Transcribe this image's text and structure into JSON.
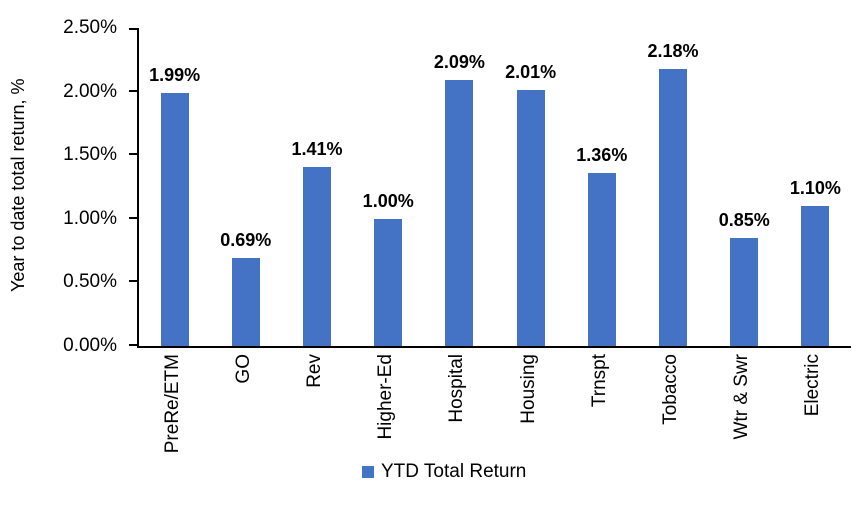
{
  "chart_data": {
    "type": "bar",
    "categories": [
      "PreRe/ETM",
      "GO",
      "Rev",
      "Higher-Ed",
      "Hospital",
      "Housing",
      "Trnspt",
      "Tobacco",
      "Wtr & Swr",
      "Electric"
    ],
    "values": [
      1.99,
      0.69,
      1.41,
      1.0,
      2.09,
      2.01,
      1.36,
      2.18,
      0.85,
      1.1
    ],
    "value_labels": [
      "1.99%",
      "0.69%",
      "1.41%",
      "1.00%",
      "2.09%",
      "2.01%",
      "1.36%",
      "2.18%",
      "0.85%",
      "1.10%"
    ],
    "title": "",
    "xlabel": "",
    "ylabel": "Year to date total return, %",
    "ylim": [
      0,
      2.5
    ],
    "yticks": [
      "0.00%",
      "0.50%",
      "1.00%",
      "1.50%",
      "2.00%",
      "2.50%"
    ],
    "ytick_values": [
      0,
      0.5,
      1.0,
      1.5,
      2.0,
      2.5
    ],
    "grid": false,
    "bar_color": "#4472C4",
    "axis_color": "#000000",
    "legend_position": "bottom",
    "legend": [
      {
        "label": "YTD Total Return",
        "color": "#4472C4"
      }
    ]
  }
}
